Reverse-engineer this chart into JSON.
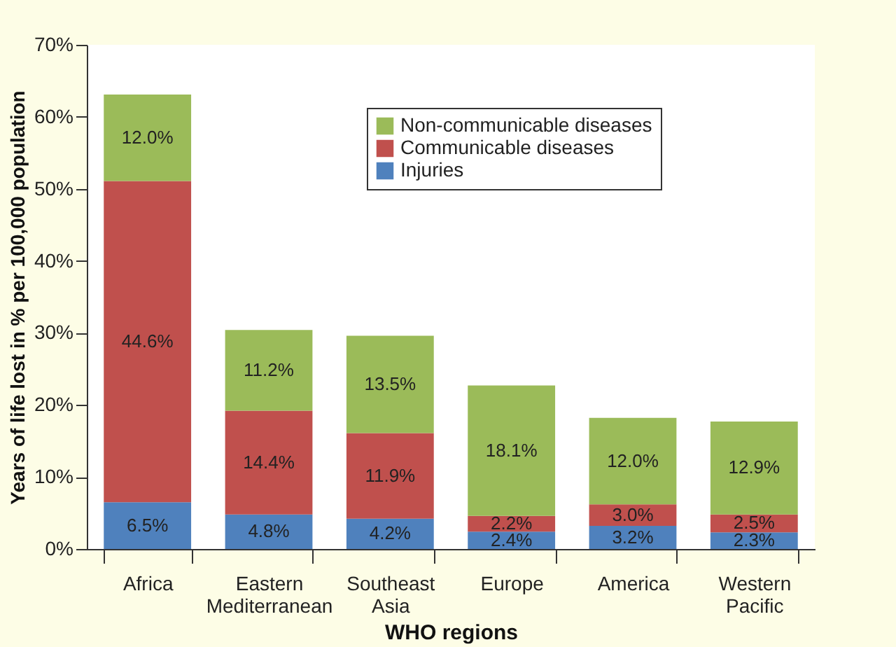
{
  "chart_data": {
    "type": "bar",
    "stacked": true,
    "xlabel": "WHO regions",
    "ylabel": "Years of life lost in % per 100,000 population",
    "categories": [
      "Africa",
      "Eastern Mediterranean",
      "Southeast Asia",
      "Europe",
      "America",
      "Western Pacific"
    ],
    "series": [
      {
        "name": "Injuries",
        "color": "#4f81bd",
        "values": [
          6.5,
          4.8,
          4.2,
          2.4,
          3.2,
          2.3
        ],
        "value_labels": [
          "6.5%",
          "4.8%",
          "4.2%",
          "2.4%",
          "3.2%",
          "2.3%"
        ]
      },
      {
        "name": "Communicable diseases",
        "color": "#c0504d",
        "values": [
          44.6,
          14.4,
          11.9,
          2.2,
          3.0,
          2.5
        ],
        "value_labels": [
          "44.6%",
          "14.4%",
          "11.9%",
          "2.2%",
          "3.0%",
          "2.5%"
        ]
      },
      {
        "name": "Non-communicable diseases",
        "color": "#9bbb59",
        "values": [
          12.0,
          11.2,
          13.5,
          18.1,
          12.0,
          12.9
        ],
        "value_labels": [
          "12.0%",
          "11.2%",
          "13.5%",
          "18.1%",
          "12.0%",
          "12.9%"
        ]
      }
    ],
    "ylim": [
      0,
      70
    ],
    "yticks": [
      {
        "value": 0,
        "label": "0%"
      },
      {
        "value": 10,
        "label": "10%"
      },
      {
        "value": 20,
        "label": "20%"
      },
      {
        "value": 30,
        "label": "30%"
      },
      {
        "value": 40,
        "label": "40%"
      },
      {
        "value": 50,
        "label": "50%"
      },
      {
        "value": 60,
        "label": "60%"
      },
      {
        "value": 70,
        "label": "70%"
      }
    ],
    "legend": "top right",
    "grid": false
  }
}
